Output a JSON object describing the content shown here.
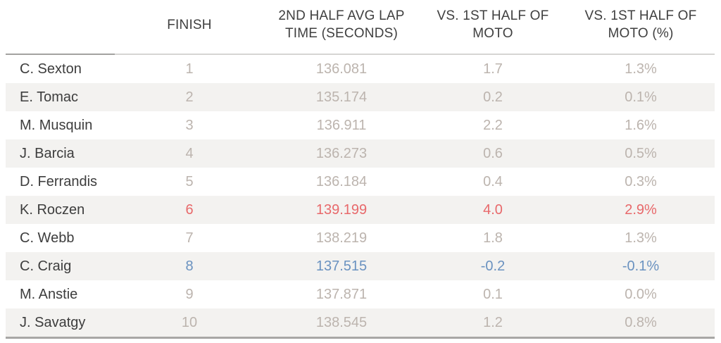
{
  "colors": {
    "name_text": "#3d3d3d",
    "header_text": "#3f3f3f",
    "value_default": "#bcb4ae",
    "highlight_red": "#e8696b",
    "highlight_blue": "#6a92c0",
    "stripe_bg": "#f3f2f0",
    "header_rule_light": "#d6d5d3",
    "header_rule_dark": "#a3a2a0",
    "bottom_border": "#a8a7a5"
  },
  "table": {
    "columns": {
      "name": "",
      "finish": "FINISH",
      "lap_time": "2ND HALF AVG LAP TIME (SECONDS)",
      "vs_first_half": "VS. 1ST HALF OF MOTO",
      "vs_first_half_pct": "VS. 1ST HALF OF MOTO (%)"
    },
    "rows": [
      {
        "name": "C. Sexton",
        "finish": "1",
        "lap_time": "136.081",
        "vs_first_half": "1.7",
        "vs_first_half_pct": "1.3%",
        "highlight": "none"
      },
      {
        "name": "E. Tomac",
        "finish": "2",
        "lap_time": "135.174",
        "vs_first_half": "0.2",
        "vs_first_half_pct": "0.1%",
        "highlight": "none"
      },
      {
        "name": "M. Musquin",
        "finish": "3",
        "lap_time": "136.911",
        "vs_first_half": "2.2",
        "vs_first_half_pct": "1.6%",
        "highlight": "none"
      },
      {
        "name": "J. Barcia",
        "finish": "4",
        "lap_time": "136.273",
        "vs_first_half": "0.6",
        "vs_first_half_pct": "0.5%",
        "highlight": "none"
      },
      {
        "name": "D. Ferrandis",
        "finish": "5",
        "lap_time": "136.184",
        "vs_first_half": "0.4",
        "vs_first_half_pct": "0.3%",
        "highlight": "none"
      },
      {
        "name": "K. Roczen",
        "finish": "6",
        "lap_time": "139.199",
        "vs_first_half": "4.0",
        "vs_first_half_pct": "2.9%",
        "highlight": "red"
      },
      {
        "name": "C. Webb",
        "finish": "7",
        "lap_time": "138.219",
        "vs_first_half": "1.8",
        "vs_first_half_pct": "1.3%",
        "highlight": "none"
      },
      {
        "name": "C. Craig",
        "finish": "8",
        "lap_time": "137.515",
        "vs_first_half": "-0.2",
        "vs_first_half_pct": "-0.1%",
        "highlight": "blue"
      },
      {
        "name": "M. Anstie",
        "finish": "9",
        "lap_time": "137.871",
        "vs_first_half": "0.1",
        "vs_first_half_pct": "0.0%",
        "highlight": "none"
      },
      {
        "name": "J. Savatgy",
        "finish": "10",
        "lap_time": "138.545",
        "vs_first_half": "1.2",
        "vs_first_half_pct": "0.8%",
        "highlight": "none"
      }
    ]
  },
  "chart_data": {
    "type": "table",
    "title": "",
    "columns": [
      "FINISH",
      "2ND HALF AVG LAP TIME (SECONDS)",
      "VS. 1ST HALF OF MOTO",
      "VS. 1ST HALF OF MOTO (%)"
    ],
    "row_labels": [
      "C. Sexton",
      "E. Tomac",
      "M. Musquin",
      "J. Barcia",
      "D. Ferrandis",
      "K. Roczen",
      "C. Webb",
      "C. Craig",
      "M. Anstie",
      "J. Savatgy"
    ],
    "finish": [
      1,
      2,
      3,
      4,
      5,
      6,
      7,
      8,
      9,
      10
    ],
    "second_half_avg_lap_time_seconds": [
      136.081,
      135.174,
      136.911,
      136.273,
      136.184,
      139.199,
      138.219,
      137.515,
      137.871,
      138.545
    ],
    "vs_first_half_of_moto": [
      1.7,
      0.2,
      2.2,
      0.6,
      0.4,
      4.0,
      1.8,
      -0.2,
      0.1,
      1.2
    ],
    "vs_first_half_of_moto_pct": [
      1.3,
      0.1,
      1.6,
      0.5,
      0.3,
      2.9,
      1.3,
      -0.1,
      0.0,
      0.8
    ],
    "highlighted_rows": {
      "K. Roczen": "red",
      "C. Craig": "blue"
    },
    "layout": {
      "striped_rows": true,
      "grid": false,
      "legend": "none"
    }
  }
}
